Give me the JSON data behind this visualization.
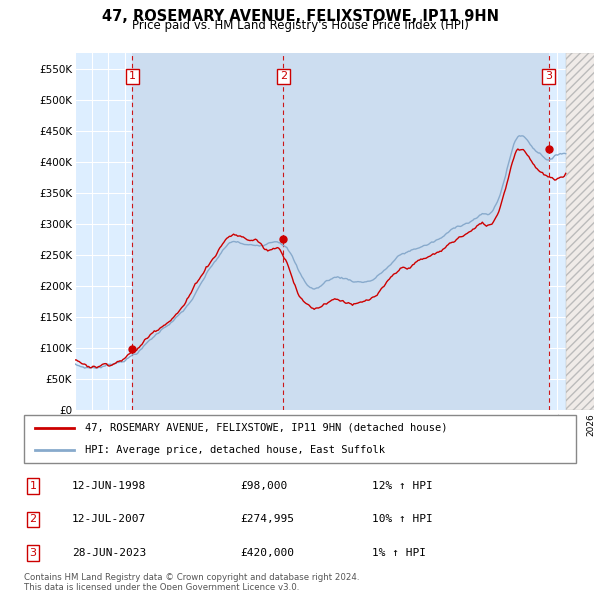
{
  "title": "47, ROSEMARY AVENUE, FELIXSTOWE, IP11 9HN",
  "subtitle": "Price paid vs. HM Land Registry's House Price Index (HPI)",
  "ylim": [
    0,
    575000
  ],
  "yticks": [
    0,
    50000,
    100000,
    150000,
    200000,
    250000,
    300000,
    350000,
    400000,
    450000,
    500000,
    550000
  ],
  "ytick_labels": [
    "£0",
    "£50K",
    "£100K",
    "£150K",
    "£200K",
    "£250K",
    "£300K",
    "£350K",
    "£400K",
    "£450K",
    "£500K",
    "£550K"
  ],
  "xlim_start": 1995.0,
  "xlim_end": 2026.0,
  "sale_dates": [
    1998.44,
    2007.53,
    2023.48
  ],
  "sale_prices": [
    98000,
    274995,
    420000
  ],
  "sale_labels": [
    "1",
    "2",
    "3"
  ],
  "sale_date_strings": [
    "12-JUN-1998",
    "12-JUL-2007",
    "28-JUN-2023"
  ],
  "sale_price_strings": [
    "£98,000",
    "£274,995",
    "£420,000"
  ],
  "sale_hpi_strings": [
    "12%",
    "10%",
    "1%"
  ],
  "property_line_color": "#cc0000",
  "hpi_line_color": "#88aacc",
  "dashed_line_color": "#cc0000",
  "legend_property_label": "47, ROSEMARY AVENUE, FELIXSTOWE, IP11 9HN (detached house)",
  "legend_hpi_label": "HPI: Average price, detached house, East Suffolk",
  "footnote": "Contains HM Land Registry data © Crown copyright and database right 2024.\nThis data is licensed under the Open Government Licence v3.0.",
  "background_color": "#ddeeff",
  "grid_color": "#ffffff",
  "shade_band_color": "#ccddf0",
  "hatch_color": "#e8e0e0",
  "hatch_start": 2024.5
}
